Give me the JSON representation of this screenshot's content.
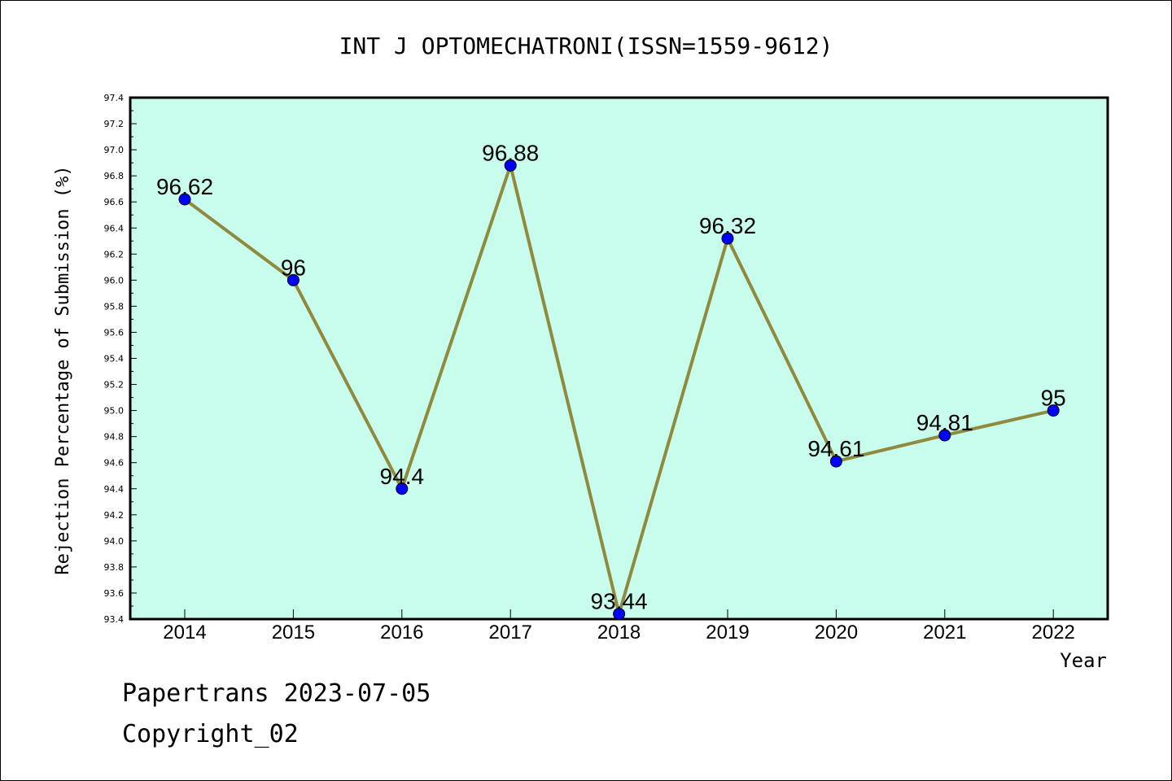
{
  "colors": {
    "plot_background": "#c8fcec",
    "line": "#8f8a3e",
    "marker": "#0000ff"
  },
  "footer": {
    "line1": "Papertrans 2023-07-05",
    "line2": "Copyright_02"
  },
  "chart_data": {
    "type": "line",
    "title": "INT J OPTOMECHATRONI(ISSN=1559-9612)",
    "xlabel": "Year",
    "ylabel": "Rejection Percentage of Submission (%)",
    "categories": [
      "2014",
      "2015",
      "2016",
      "2017",
      "2018",
      "2019",
      "2020",
      "2021",
      "2022"
    ],
    "series": [
      {
        "values": [
          96.62,
          96,
          94.4,
          96.88,
          93.44,
          96.32,
          94.61,
          94.81,
          95
        ],
        "labels": [
          "96.62",
          "96",
          "94.4",
          "96.88",
          "93.44",
          "96.32",
          "94.61",
          "94.81",
          "95"
        ]
      }
    ],
    "ylim": [
      93.4,
      97.4
    ],
    "yticks": [
      "93.4",
      "93.6",
      "93.8",
      "94.0",
      "94.2",
      "94.4",
      "94.6",
      "94.8",
      "95.0",
      "95.2",
      "95.4",
      "95.6",
      "95.8",
      "96.0",
      "96.2",
      "96.4",
      "96.6",
      "96.8",
      "97.0",
      "97.2",
      "97.4"
    ],
    "grid": false,
    "legend": "none"
  }
}
